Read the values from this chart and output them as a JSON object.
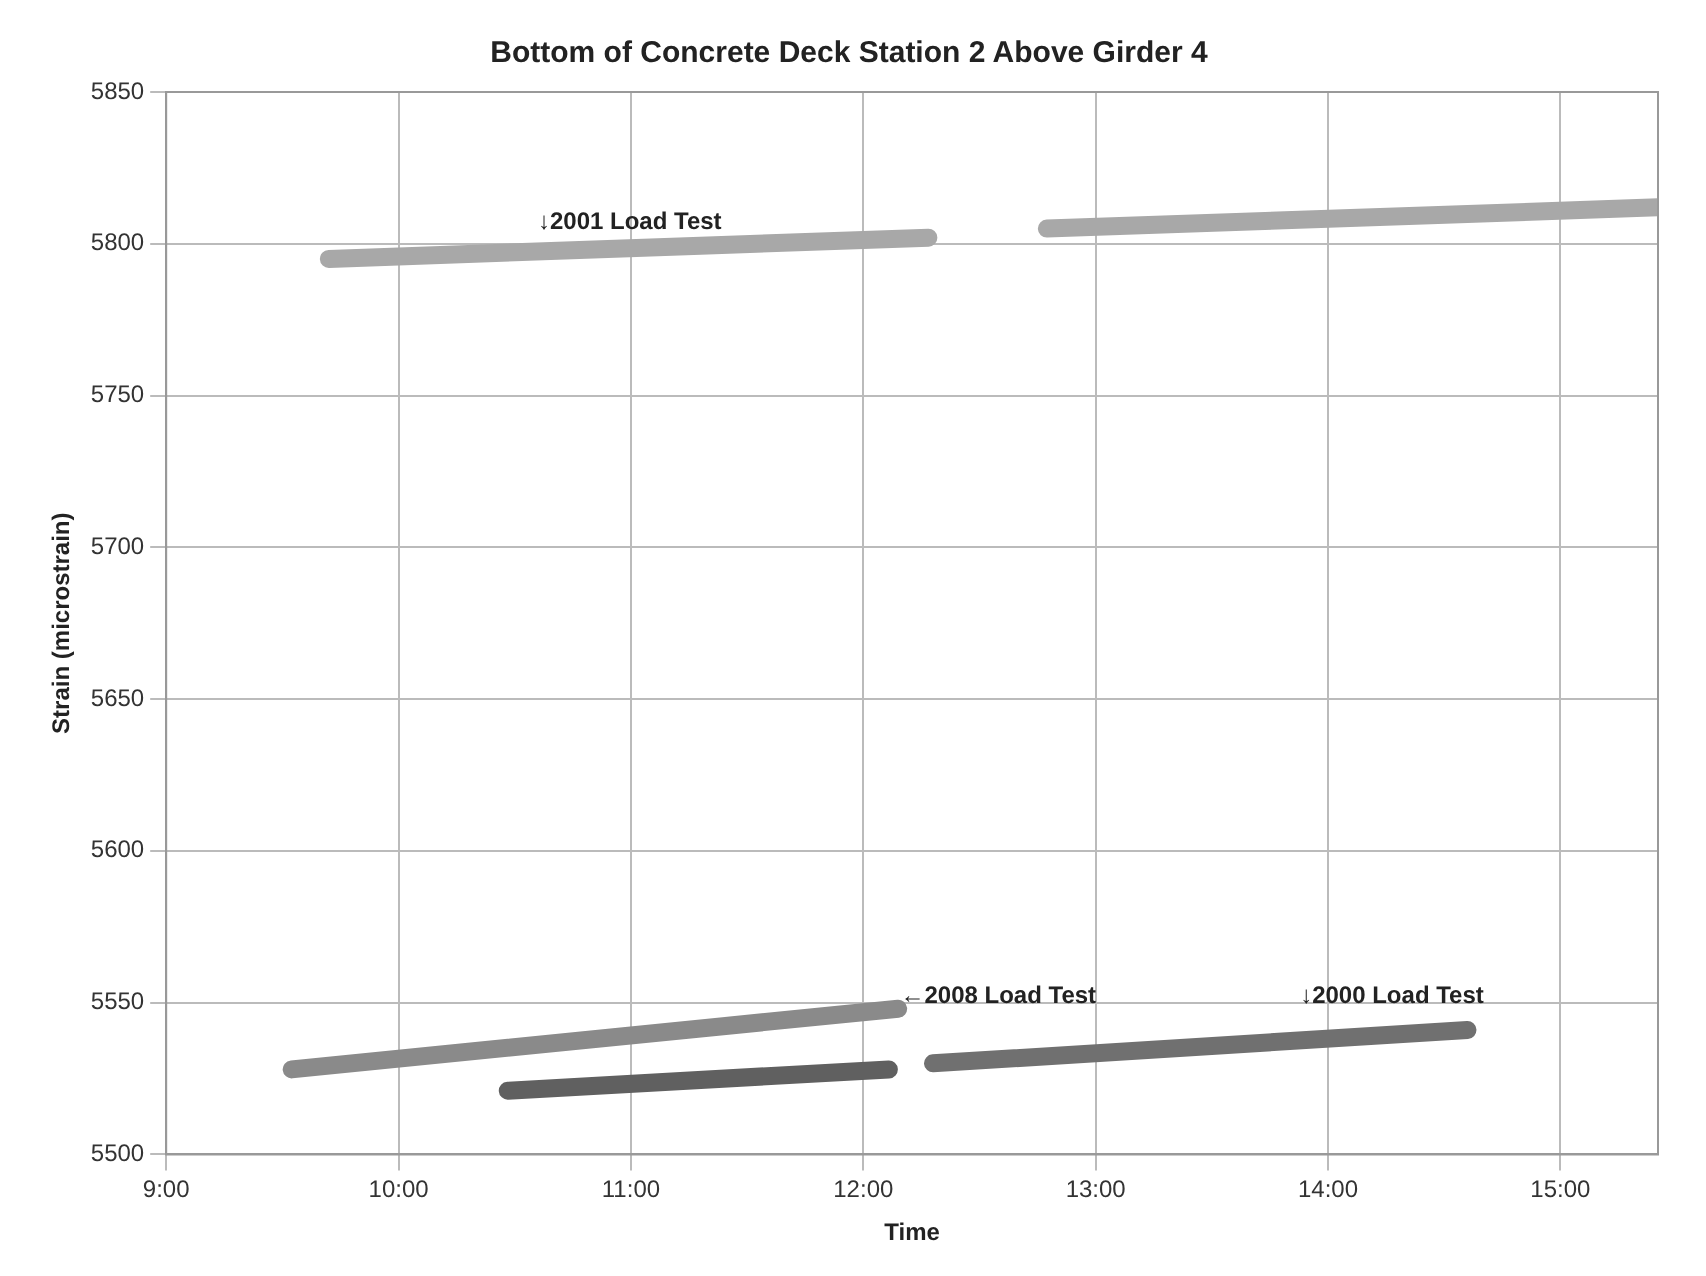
{
  "chart_data": {
    "type": "line",
    "title": "Bottom of Concrete Deck Station 2 Above Girder 4",
    "xlabel": "Time",
    "ylabel": "Strain (microstrain)",
    "xlim": [
      9,
      15.42
    ],
    "xticks": [
      {
        "value": 9,
        "label": "9:00"
      },
      {
        "value": 10,
        "label": "10:00"
      },
      {
        "value": 11,
        "label": "11:00"
      },
      {
        "value": 12,
        "label": "12:00"
      },
      {
        "value": 13,
        "label": "13:00"
      },
      {
        "value": 14,
        "label": "14:00"
      },
      {
        "value": 15,
        "label": "15:00"
      }
    ],
    "ylim": [
      5500,
      5850
    ],
    "yticks": [
      5500,
      5550,
      5600,
      5650,
      5700,
      5750,
      5800,
      5850
    ],
    "grid": true,
    "legend": false,
    "marker": "none",
    "line_style": "solid",
    "series": [
      {
        "color": "#a8a8a8",
        "x": [
          9.7,
          12.28
        ],
        "values": [
          5795,
          5802
        ]
      },
      {
        "color": "#a8a8a8",
        "x": [
          12.79,
          15.42
        ],
        "values": [
          5805,
          5812
        ]
      },
      {
        "color": "#8a8a8a",
        "x": [
          9.54,
          12.15
        ],
        "values": [
          5528,
          5548
        ]
      },
      {
        "color": "#606060",
        "x": [
          10.47,
          12.11
        ],
        "values": [
          5521,
          5528
        ]
      },
      {
        "color": "#707070",
        "x": [
          12.3,
          14.6
        ],
        "values": [
          5530,
          5541
        ]
      }
    ],
    "annotations": [
      {
        "text": "↓2001 Load Test",
        "x": 10.6,
        "y": 5803
      },
      {
        "text": "←2008 Load Test",
        "x": 12.16,
        "y": 5548
      },
      {
        "text": "↓2000 Load Test",
        "x": 13.88,
        "y": 5538
      }
    ]
  }
}
